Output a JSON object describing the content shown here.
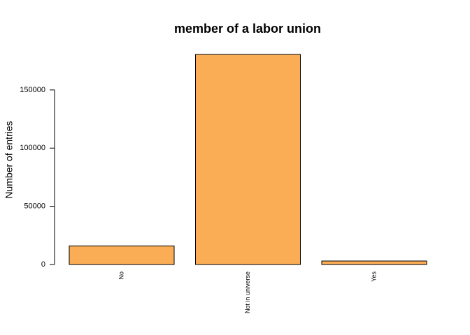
{
  "chart_data": {
    "type": "bar",
    "title": "member of a labor union",
    "y_label": "Number of entries",
    "categories": [
      "No",
      "Not in universe",
      "Yes"
    ],
    "values": [
      16000,
      180500,
      3000
    ],
    "color": "#fbad55",
    "ylim": [
      0,
      180500
    ],
    "yticks": [
      0,
      50000,
      100000,
      150000
    ]
  }
}
